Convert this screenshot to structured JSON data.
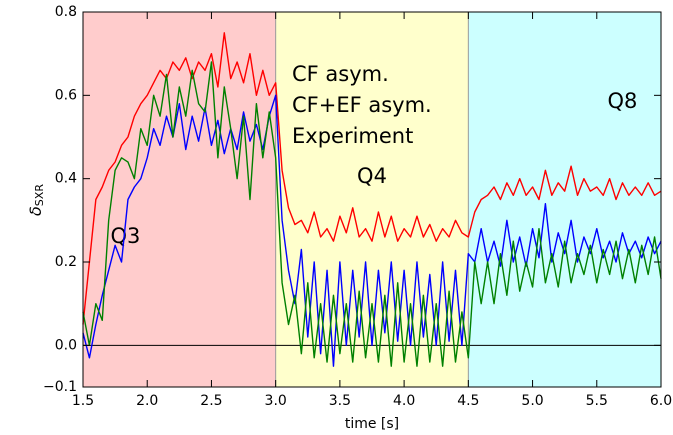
{
  "chart_data": {
    "type": "line",
    "xlabel": "time [s]",
    "ylabel": {
      "symbol": "δ",
      "subscript": "SXR"
    },
    "xlim": [
      1.5,
      6.0
    ],
    "ylim": [
      -0.1,
      0.8
    ],
    "xticks": [
      1.5,
      {
        "value": 2.0,
        "label": "2.0"
      },
      2.5,
      {
        "value": 3.0,
        "label": "3.0"
      },
      3.5,
      {
        "value": 4.0,
        "label": "4.0"
      },
      4.5,
      {
        "value": 5.0,
        "label": "5.0"
      },
      5.5,
      {
        "value": 6.0,
        "label": "6.0"
      }
    ],
    "yticks": [
      {
        "value": -0.1,
        "label": "−0.1"
      },
      {
        "value": 0.0,
        "label": "0.0"
      },
      0.2,
      0.4,
      0.6,
      0.8
    ],
    "hline": 0,
    "regions": [
      {
        "label": "Q3",
        "start": 1.5,
        "end": 3.0,
        "color": "#ffcccc"
      },
      {
        "label": "Q4",
        "start": 3.0,
        "end": 4.5,
        "color": "#ffffcc"
      },
      {
        "label": "Q8",
        "start": 4.5,
        "end": 6.0,
        "color": "#ccffff"
      }
    ],
    "x": [
      1.5,
      1.55,
      1.6,
      1.65,
      1.7,
      1.75,
      1.8,
      1.85,
      1.9,
      1.95,
      2.0,
      2.05,
      2.1,
      2.15,
      2.2,
      2.25,
      2.3,
      2.35,
      2.4,
      2.45,
      2.5,
      2.55,
      2.6,
      2.65,
      2.7,
      2.75,
      2.8,
      2.85,
      2.9,
      2.95,
      3.0,
      3.05,
      3.1,
      3.15,
      3.2,
      3.25,
      3.3,
      3.35,
      3.4,
      3.45,
      3.5,
      3.55,
      3.6,
      3.65,
      3.7,
      3.75,
      3.8,
      3.85,
      3.9,
      3.95,
      4.0,
      4.05,
      4.1,
      4.15,
      4.2,
      4.25,
      4.3,
      4.35,
      4.4,
      4.45,
      4.5,
      4.55,
      4.6,
      4.65,
      4.7,
      4.75,
      4.8,
      4.85,
      4.9,
      4.95,
      5.0,
      5.05,
      5.1,
      5.15,
      5.2,
      5.25,
      5.3,
      5.35,
      5.4,
      5.45,
      5.5,
      5.55,
      5.6,
      5.65,
      5.7,
      5.75,
      5.8,
      5.85,
      5.9,
      5.95,
      6.0
    ],
    "series": [
      {
        "name": "CF asym.",
        "color": "#ff0000",
        "values": [
          0.05,
          0.2,
          0.35,
          0.38,
          0.42,
          0.44,
          0.48,
          0.5,
          0.55,
          0.58,
          0.6,
          0.63,
          0.66,
          0.64,
          0.68,
          0.66,
          0.69,
          0.64,
          0.68,
          0.66,
          0.7,
          0.62,
          0.75,
          0.64,
          0.68,
          0.63,
          0.7,
          0.6,
          0.66,
          0.6,
          0.63,
          0.42,
          0.33,
          0.29,
          0.3,
          0.27,
          0.32,
          0.26,
          0.28,
          0.25,
          0.31,
          0.27,
          0.33,
          0.26,
          0.28,
          0.25,
          0.32,
          0.26,
          0.31,
          0.25,
          0.28,
          0.26,
          0.31,
          0.26,
          0.29,
          0.25,
          0.28,
          0.26,
          0.3,
          0.27,
          0.26,
          0.32,
          0.35,
          0.36,
          0.38,
          0.35,
          0.39,
          0.36,
          0.4,
          0.36,
          0.38,
          0.35,
          0.42,
          0.36,
          0.39,
          0.37,
          0.43,
          0.36,
          0.4,
          0.37,
          0.38,
          0.36,
          0.4,
          0.35,
          0.39,
          0.36,
          0.38,
          0.36,
          0.39,
          0.36,
          0.37
        ]
      },
      {
        "name": "CF+EF asym.",
        "color": "#0000ff",
        "values": [
          0.03,
          -0.03,
          0.05,
          0.12,
          0.18,
          0.24,
          0.2,
          0.35,
          0.38,
          0.4,
          0.45,
          0.52,
          0.48,
          0.55,
          0.5,
          0.58,
          0.47,
          0.55,
          0.49,
          0.57,
          0.48,
          0.54,
          0.46,
          0.52,
          0.47,
          0.56,
          0.49,
          0.53,
          0.47,
          0.55,
          0.6,
          0.3,
          0.18,
          0.1,
          0.23,
          0.02,
          0.2,
          -0.02,
          0.18,
          -0.05,
          0.2,
          0.0,
          0.18,
          0.02,
          0.2,
          0.0,
          0.18,
          0.03,
          0.2,
          0.01,
          0.18,
          0.0,
          0.2,
          0.02,
          0.17,
          0.0,
          0.2,
          0.01,
          0.18,
          0.0,
          0.22,
          0.2,
          0.28,
          0.2,
          0.25,
          0.19,
          0.3,
          0.2,
          0.26,
          0.19,
          0.28,
          0.21,
          0.34,
          0.2,
          0.27,
          0.22,
          0.3,
          0.2,
          0.26,
          0.22,
          0.28,
          0.21,
          0.25,
          0.2,
          0.27,
          0.22,
          0.25,
          0.21,
          0.26,
          0.22,
          0.25
        ]
      },
      {
        "name": "Experiment",
        "color": "#008000",
        "values": [
          0.08,
          0.0,
          0.1,
          0.06,
          0.3,
          0.42,
          0.45,
          0.44,
          0.4,
          0.52,
          0.48,
          0.6,
          0.55,
          0.65,
          0.5,
          0.62,
          0.55,
          0.66,
          0.58,
          0.56,
          0.68,
          0.45,
          0.62,
          0.52,
          0.4,
          0.55,
          0.35,
          0.58,
          0.45,
          0.56,
          0.45,
          0.15,
          0.05,
          0.12,
          -0.02,
          0.15,
          -0.03,
          0.1,
          -0.04,
          0.12,
          -0.02,
          0.1,
          -0.04,
          0.13,
          -0.03,
          0.1,
          -0.04,
          0.12,
          -0.05,
          0.15,
          -0.04,
          0.1,
          -0.05,
          0.12,
          -0.04,
          0.1,
          -0.05,
          0.13,
          -0.04,
          0.08,
          -0.03,
          0.2,
          0.1,
          0.2,
          0.1,
          0.22,
          0.12,
          0.25,
          0.13,
          0.2,
          0.14,
          0.28,
          0.15,
          0.22,
          0.14,
          0.25,
          0.15,
          0.22,
          0.17,
          0.24,
          0.15,
          0.23,
          0.17,
          0.25,
          0.16,
          0.23,
          0.15,
          0.24,
          0.17,
          0.26,
          0.16
        ]
      }
    ]
  }
}
